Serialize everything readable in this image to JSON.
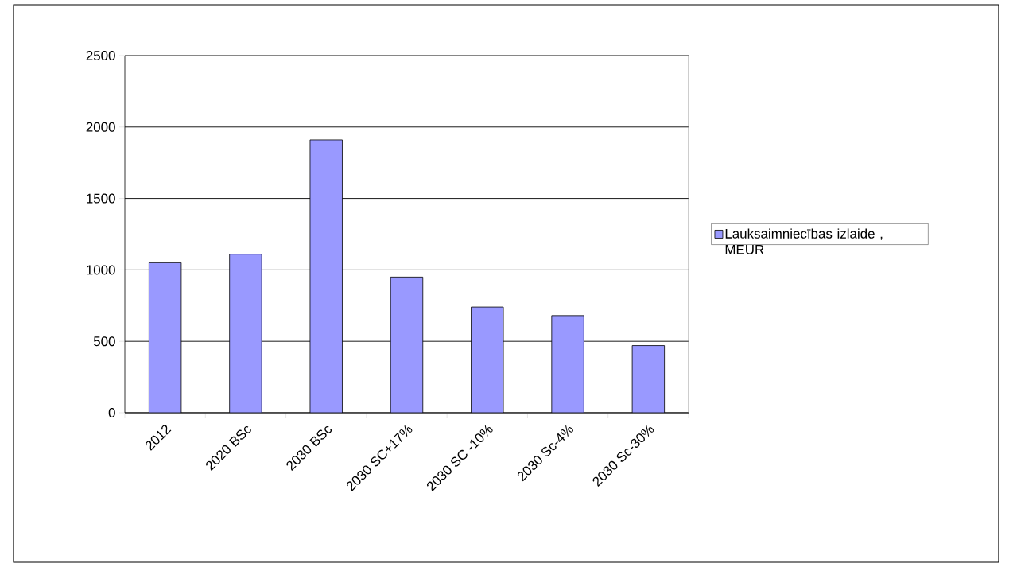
{
  "chart_data": {
    "type": "bar",
    "categories": [
      "2012",
      "2020 BSc",
      "2030 BSc",
      "2030 SC+17%",
      "2030 SC -10%",
      "2030 Sc-4%",
      "2030 Sc-30%"
    ],
    "series": [
      {
        "name": "Lauksaimniecības izlaide , MEUR",
        "color": "#9999ff",
        "values": [
          1050,
          1110,
          1910,
          950,
          740,
          680,
          470
        ]
      }
    ],
    "ylim": [
      0,
      2500
    ],
    "yticks": [
      0,
      500,
      1000,
      1500,
      2000,
      2500
    ],
    "grid": "y",
    "legend": "right"
  }
}
